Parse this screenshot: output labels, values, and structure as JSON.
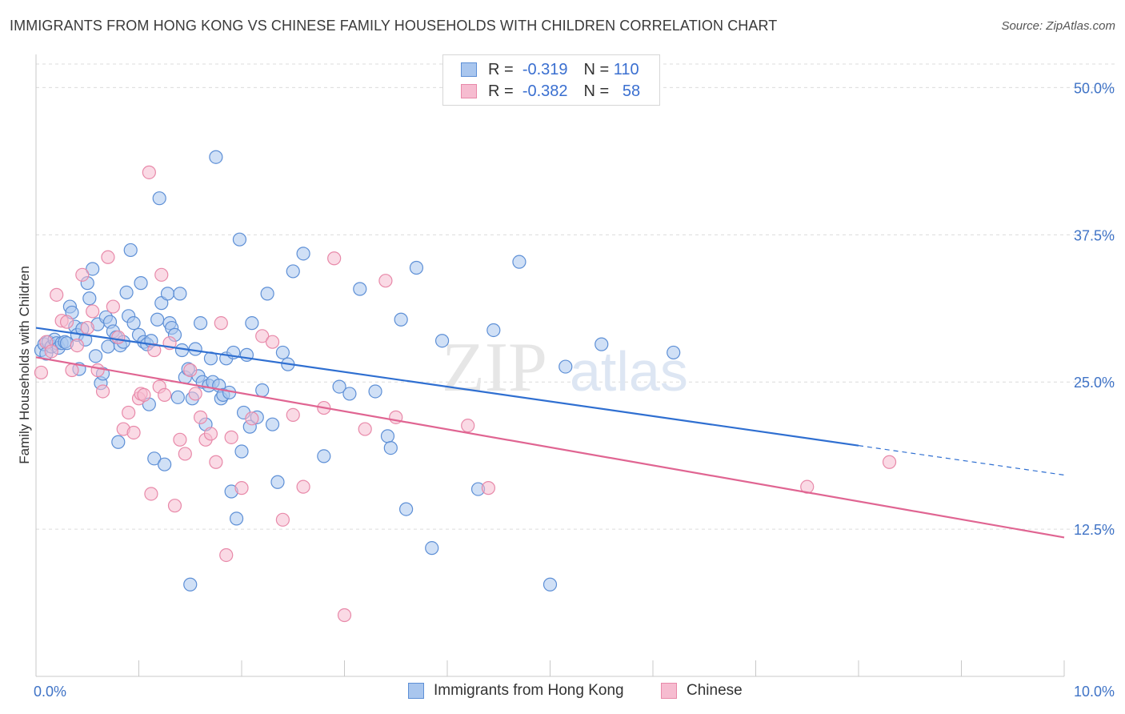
{
  "title": "IMMIGRANTS FROM HONG KONG VS CHINESE FAMILY HOUSEHOLDS WITH CHILDREN CORRELATION CHART",
  "source": "Source: ZipAtlas.com",
  "watermark": {
    "part1": "ZIP",
    "part2": "atlas"
  },
  "legend": {
    "rows": [
      {
        "r_label": "R =",
        "r_value": "-0.319",
        "n_label": "N =",
        "n_value": "110"
      },
      {
        "r_label": "R =",
        "r_value": "-0.382",
        "n_label": "N =",
        "n_value": "58"
      }
    ]
  },
  "colors": {
    "blue_fill": "#a9c6ee",
    "blue_stroke": "#5d8fd6",
    "blue_line": "#2f6fd1",
    "pink_fill": "#f6bcd0",
    "pink_stroke": "#e889a9",
    "pink_line": "#e06592",
    "tick_text": "#3f73c6",
    "grid": "#dcdcdc"
  },
  "chart_data": {
    "type": "scatter",
    "title": "IMMIGRANTS FROM HONG KONG VS CHINESE FAMILY HOUSEHOLDS WITH CHILDREN CORRELATION CHART",
    "xlabel": "",
    "ylabel": "Family Households with Children",
    "xlim": [
      0,
      10
    ],
    "ylim": [
      0,
      52
    ],
    "x_tick_labels": [
      "0.0%",
      "10.0%"
    ],
    "y_ticks": [
      12.5,
      25.0,
      37.5,
      50.0
    ],
    "y_tick_labels": [
      "12.5%",
      "25.0%",
      "37.5%",
      "50.0%"
    ],
    "grid": true,
    "legend_position": "top-center",
    "series": [
      {
        "name": "Immigrants from Hong Kong",
        "trend": {
          "x0": 0.0,
          "y0": 29.6,
          "x1": 8.0,
          "y1": 19.6,
          "dashed_to_x": 10.0,
          "dashed_to_y": 17.1
        },
        "points": [
          [
            0.05,
            27.7
          ],
          [
            0.08,
            28.2
          ],
          [
            0.1,
            27.4
          ],
          [
            0.12,
            28.4
          ],
          [
            0.15,
            28.0
          ],
          [
            0.18,
            28.6
          ],
          [
            0.2,
            28.3
          ],
          [
            0.22,
            27.9
          ],
          [
            0.25,
            28.3
          ],
          [
            0.28,
            28.4
          ],
          [
            0.3,
            28.3
          ],
          [
            0.33,
            31.4
          ],
          [
            0.35,
            30.9
          ],
          [
            0.38,
            29.7
          ],
          [
            0.4,
            29.0
          ],
          [
            0.42,
            26.1
          ],
          [
            0.45,
            29.5
          ],
          [
            0.48,
            28.6
          ],
          [
            0.5,
            33.4
          ],
          [
            0.52,
            32.1
          ],
          [
            0.55,
            34.6
          ],
          [
            0.58,
            27.2
          ],
          [
            0.6,
            29.9
          ],
          [
            0.63,
            24.9
          ],
          [
            0.65,
            25.7
          ],
          [
            0.68,
            30.5
          ],
          [
            0.7,
            28.0
          ],
          [
            0.72,
            30.1
          ],
          [
            0.75,
            29.3
          ],
          [
            0.78,
            28.8
          ],
          [
            0.8,
            19.9
          ],
          [
            0.82,
            28.1
          ],
          [
            0.85,
            28.4
          ],
          [
            0.88,
            32.6
          ],
          [
            0.9,
            30.6
          ],
          [
            0.92,
            36.2
          ],
          [
            0.95,
            30.0
          ],
          [
            1.0,
            29.0
          ],
          [
            1.02,
            33.4
          ],
          [
            1.05,
            28.4
          ],
          [
            1.08,
            28.2
          ],
          [
            1.1,
            23.1
          ],
          [
            1.12,
            28.5
          ],
          [
            1.15,
            18.5
          ],
          [
            1.18,
            30.3
          ],
          [
            1.2,
            40.6
          ],
          [
            1.22,
            31.7
          ],
          [
            1.25,
            18.0
          ],
          [
            1.28,
            32.5
          ],
          [
            1.3,
            30.0
          ],
          [
            1.32,
            29.6
          ],
          [
            1.35,
            29.0
          ],
          [
            1.38,
            23.7
          ],
          [
            1.4,
            32.5
          ],
          [
            1.42,
            27.7
          ],
          [
            1.45,
            25.4
          ],
          [
            1.48,
            26.1
          ],
          [
            1.5,
            7.8
          ],
          [
            1.52,
            23.6
          ],
          [
            1.55,
            27.8
          ],
          [
            1.58,
            25.5
          ],
          [
            1.6,
            30.0
          ],
          [
            1.62,
            25.0
          ],
          [
            1.65,
            21.4
          ],
          [
            1.68,
            24.7
          ],
          [
            1.7,
            27.0
          ],
          [
            1.72,
            25.0
          ],
          [
            1.75,
            44.1
          ],
          [
            1.78,
            24.7
          ],
          [
            1.8,
            23.6
          ],
          [
            1.82,
            23.9
          ],
          [
            1.85,
            27.0
          ],
          [
            1.88,
            24.1
          ],
          [
            1.9,
            15.7
          ],
          [
            1.92,
            27.5
          ],
          [
            1.95,
            13.4
          ],
          [
            1.98,
            37.1
          ],
          [
            2.0,
            19.1
          ],
          [
            2.02,
            22.4
          ],
          [
            2.05,
            27.3
          ],
          [
            2.08,
            21.2
          ],
          [
            2.1,
            30.0
          ],
          [
            2.15,
            22.0
          ],
          [
            2.2,
            24.3
          ],
          [
            2.25,
            32.5
          ],
          [
            2.3,
            21.4
          ],
          [
            2.35,
            16.5
          ],
          [
            2.4,
            27.5
          ],
          [
            2.45,
            26.5
          ],
          [
            2.5,
            34.4
          ],
          [
            2.6,
            35.9
          ],
          [
            2.8,
            18.7
          ],
          [
            2.95,
            24.6
          ],
          [
            3.05,
            24.0
          ],
          [
            3.15,
            32.9
          ],
          [
            3.3,
            24.2
          ],
          [
            3.42,
            20.4
          ],
          [
            3.45,
            19.4
          ],
          [
            3.55,
            30.3
          ],
          [
            3.6,
            14.2
          ],
          [
            3.7,
            34.7
          ],
          [
            3.85,
            10.9
          ],
          [
            3.95,
            28.5
          ],
          [
            4.3,
            15.9
          ],
          [
            4.45,
            29.4
          ],
          [
            4.7,
            35.2
          ],
          [
            5.0,
            7.8
          ],
          [
            5.15,
            26.3
          ],
          [
            5.5,
            28.2
          ],
          [
            6.2,
            27.5
          ]
        ]
      },
      {
        "name": "Chinese",
        "trend": {
          "x0": 0.0,
          "y0": 27.1,
          "x1": 10.0,
          "y1": 11.8
        },
        "points": [
          [
            0.05,
            25.8
          ],
          [
            0.1,
            28.4
          ],
          [
            0.15,
            27.6
          ],
          [
            0.2,
            32.4
          ],
          [
            0.25,
            30.2
          ],
          [
            0.3,
            30.1
          ],
          [
            0.35,
            26.0
          ],
          [
            0.4,
            28.1
          ],
          [
            0.45,
            34.1
          ],
          [
            0.5,
            29.6
          ],
          [
            0.55,
            31.0
          ],
          [
            0.6,
            26.0
          ],
          [
            0.65,
            24.2
          ],
          [
            0.7,
            35.6
          ],
          [
            0.75,
            31.4
          ],
          [
            0.8,
            28.8
          ],
          [
            0.85,
            21.0
          ],
          [
            0.9,
            22.4
          ],
          [
            0.95,
            20.7
          ],
          [
            1.0,
            23.6
          ],
          [
            1.02,
            24.0
          ],
          [
            1.05,
            23.9
          ],
          [
            1.1,
            42.8
          ],
          [
            1.12,
            15.5
          ],
          [
            1.15,
            27.7
          ],
          [
            1.2,
            24.6
          ],
          [
            1.22,
            34.1
          ],
          [
            1.25,
            23.9
          ],
          [
            1.3,
            28.3
          ],
          [
            1.35,
            14.5
          ],
          [
            1.4,
            20.1
          ],
          [
            1.45,
            18.9
          ],
          [
            1.5,
            26.0
          ],
          [
            1.55,
            24.0
          ],
          [
            1.6,
            22.0
          ],
          [
            1.65,
            20.1
          ],
          [
            1.7,
            20.6
          ],
          [
            1.75,
            18.2
          ],
          [
            1.8,
            30.0
          ],
          [
            1.85,
            10.3
          ],
          [
            1.9,
            20.3
          ],
          [
            2.0,
            16.0
          ],
          [
            2.1,
            21.9
          ],
          [
            2.2,
            28.9
          ],
          [
            2.3,
            28.4
          ],
          [
            2.4,
            13.3
          ],
          [
            2.5,
            22.2
          ],
          [
            2.6,
            16.1
          ],
          [
            2.8,
            22.8
          ],
          [
            2.9,
            35.5
          ],
          [
            3.0,
            5.2
          ],
          [
            3.2,
            21.0
          ],
          [
            3.4,
            33.6
          ],
          [
            3.5,
            22.0
          ],
          [
            4.2,
            21.3
          ],
          [
            4.4,
            16.0
          ],
          [
            7.5,
            16.1
          ],
          [
            8.3,
            18.2
          ]
        ]
      }
    ]
  },
  "bottom_legend": [
    {
      "label": "Immigrants from Hong Kong"
    },
    {
      "label": "Chinese"
    }
  ]
}
